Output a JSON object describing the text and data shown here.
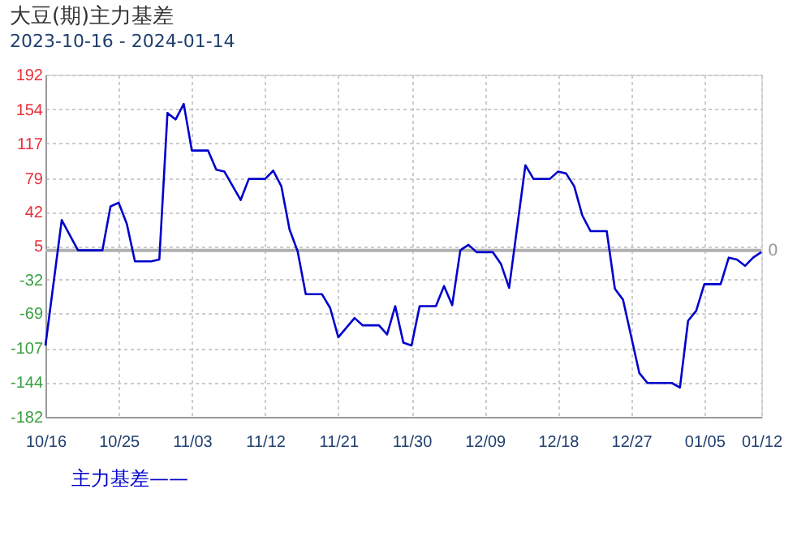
{
  "chart_data": {
    "type": "line",
    "title": "大豆(期)主力基差",
    "subtitle": "2023-10-16 - 2024-01-14",
    "x": [
      "2023-10-16",
      "2023-10-18",
      "2023-10-20",
      "2023-10-23",
      "2023-10-24",
      "2023-10-25",
      "2023-10-26",
      "2023-10-27",
      "2023-10-29",
      "2023-10-30",
      "2023-10-31",
      "2023-11-01",
      "2023-11-02",
      "2023-11-03",
      "2023-11-05",
      "2023-11-06",
      "2023-11-07",
      "2023-11-09",
      "2023-11-10",
      "2023-11-12",
      "2023-11-13",
      "2023-11-14",
      "2023-11-15",
      "2023-11-16",
      "2023-11-17",
      "2023-11-19",
      "2023-11-20",
      "2023-11-21",
      "2023-11-23",
      "2023-11-24",
      "2023-11-26",
      "2023-11-27",
      "2023-11-28",
      "2023-11-29",
      "2023-11-30",
      "2023-12-01",
      "2023-12-03",
      "2023-12-04",
      "2023-12-05",
      "2023-12-06",
      "2023-12-07",
      "2023-12-08",
      "2023-12-10",
      "2023-12-11",
      "2023-12-12",
      "2023-12-14",
      "2023-12-15",
      "2023-12-17",
      "2023-12-18",
      "2023-12-19",
      "2023-12-20",
      "2023-12-21",
      "2023-12-22",
      "2023-12-24",
      "2023-12-25",
      "2023-12-26",
      "2023-12-28",
      "2023-12-29",
      "2024-01-01",
      "2024-01-02",
      "2024-01-03",
      "2024-01-04",
      "2024-01-05",
      "2024-01-07",
      "2024-01-08",
      "2024-01-09",
      "2024-01-10",
      "2024-01-11",
      "2024-01-12"
    ],
    "series": [
      {
        "name": "主力基差——",
        "color": "#0000cc",
        "values": [
          -104,
          33,
          0,
          0,
          48,
          52,
          29,
          -12,
          -12,
          -10,
          150,
          143,
          160,
          109,
          109,
          88,
          86,
          55,
          78,
          78,
          87,
          70,
          23,
          -1,
          -48,
          -48,
          -63,
          -95,
          -74,
          -82,
          -82,
          -92,
          -61,
          -101,
          -104,
          -61,
          -61,
          -39,
          -60,
          0,
          6,
          -2,
          -2,
          -15,
          -41,
          93,
          78,
          78,
          86,
          84,
          70,
          38,
          21,
          21,
          -42,
          -54,
          -134,
          -145,
          -145,
          -150,
          -77,
          -66,
          -37,
          -37,
          -8,
          -10,
          -17,
          -8,
          -2
        ]
      }
    ],
    "xlim": [
      "2023-10-16",
      "2024-01-12"
    ],
    "xticks": [
      {
        "value": "2023-10-16",
        "label": "10/16"
      },
      {
        "value": "2023-10-25",
        "label": "10/25"
      },
      {
        "value": "2023-11-03",
        "label": "11/03"
      },
      {
        "value": "2023-11-12",
        "label": "11/12"
      },
      {
        "value": "2023-11-21",
        "label": "11/21"
      },
      {
        "value": "2023-11-30",
        "label": "11/30"
      },
      {
        "value": "2023-12-09",
        "label": "12/09"
      },
      {
        "value": "2023-12-18",
        "label": "12/18"
      },
      {
        "value": "2023-12-27",
        "label": "12/27"
      },
      {
        "value": "2024-01-05",
        "label": "01/05"
      },
      {
        "value": "2024-01-12",
        "label": "01/12"
      }
    ],
    "ylim": [
      -182,
      192
    ],
    "yticks": [
      192,
      154,
      117,
      79,
      42,
      5,
      -32,
      -69,
      -107,
      -144,
      -182
    ],
    "ref_lines": [
      {
        "axis": "y",
        "value": 0,
        "label": "0",
        "color": "#b0b0b0"
      }
    ],
    "grid": true,
    "legend": "bottom",
    "marker": "none",
    "line_style": "solid"
  }
}
